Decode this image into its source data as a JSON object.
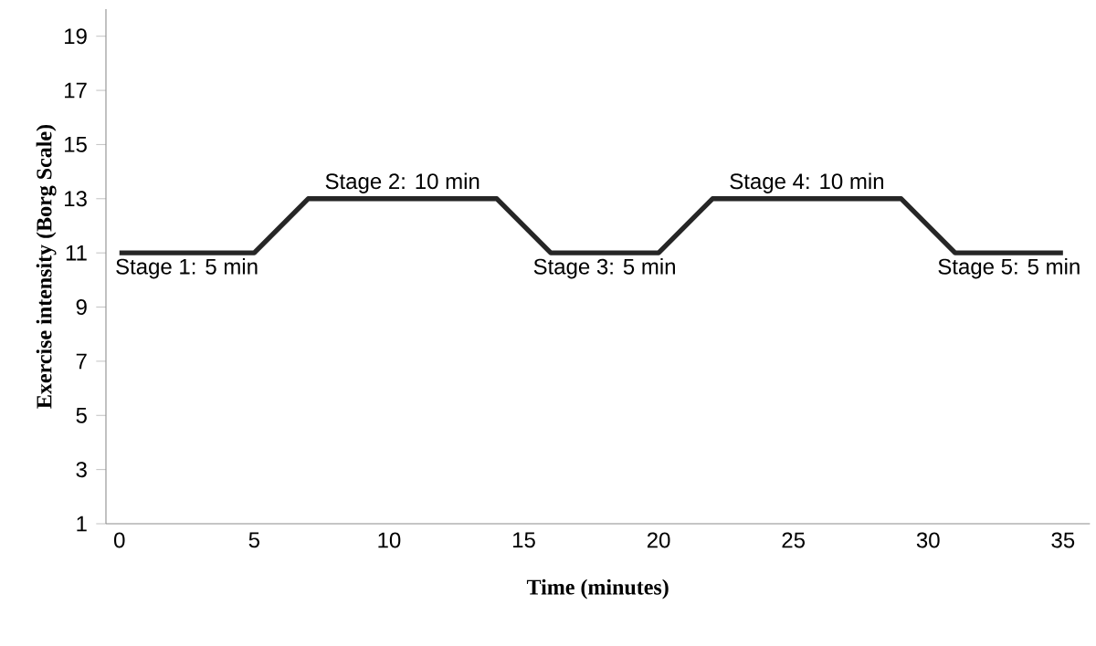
{
  "chart_data": {
    "type": "line",
    "xlabel": "Time (minutes)",
    "ylabel": "Exercise intensity (Borg Scale)",
    "x": [
      0,
      5,
      7,
      14,
      16,
      20,
      22,
      29,
      31,
      35
    ],
    "series": [
      {
        "color": "#262626",
        "values": [
          11,
          11,
          13,
          13,
          11,
          11,
          13,
          13,
          11,
          11
        ]
      }
    ],
    "xlim": [
      -0.5,
      36
    ],
    "ylim": [
      1,
      20
    ],
    "xticks": [
      0,
      5,
      10,
      15,
      20,
      25,
      30,
      35
    ],
    "yticks": [
      1,
      3,
      5,
      7,
      9,
      11,
      13,
      15,
      17,
      19
    ],
    "marker": "none",
    "line_style": "solid",
    "annotations": [
      {
        "text": "Stage 1: 5 min",
        "x": 2.5,
        "y": 11
      },
      {
        "text": "Stage 2: 10 min",
        "x": 10.5,
        "y": 13
      },
      {
        "text": "Stage 3: 5 min",
        "x": 18,
        "y": 11
      },
      {
        "text": "Stage 4: 10 min",
        "x": 25.5,
        "y": 13
      },
      {
        "text": "Stage 5: 5 min",
        "x": 33,
        "y": 11
      }
    ]
  }
}
